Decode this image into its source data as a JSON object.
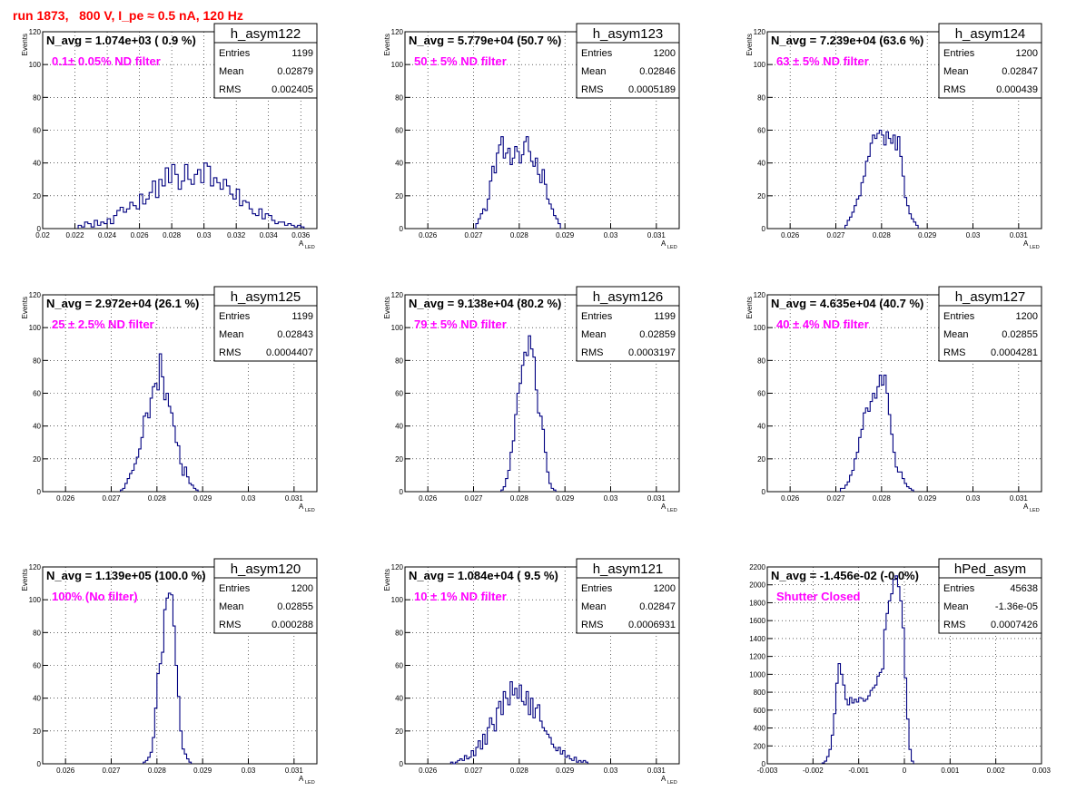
{
  "canvas_title": "run 1873,   800 V, I_pe ≈ 0.5 nA, 120 Hz",
  "colors": {
    "line": "#000080",
    "annotation": "#ff00ff",
    "title": "#ff0000",
    "grid": "#000000"
  },
  "stat_labels": {
    "entries": "Entries",
    "mean": "Mean",
    "rms": "RMS"
  },
  "chart_data": [
    {
      "type": "histogram",
      "name": "h_asym122",
      "nav": "N_avg = 1.074e+03 ( 0.9 %)",
      "filter": "0.1± 0.05% ND filter",
      "entries": "1199",
      "mean": "0.02879",
      "rms": "0.002405",
      "ylabel": "Events",
      "xlabel": "A",
      "xlabel_sub": "LED",
      "xlim": [
        0.02,
        0.037
      ],
      "ylim": [
        0,
        120
      ],
      "xticks": [
        0.02,
        0.022,
        0.024,
        0.026,
        0.028,
        0.03,
        0.032,
        0.034,
        0.036
      ],
      "xtick_labels": [
        "0.02",
        "0.022",
        "0.024",
        "0.026",
        "0.028",
        "0.03",
        "0.032",
        "0.034",
        "0.036"
      ],
      "yticks": [
        0,
        20,
        40,
        60,
        80,
        100,
        120
      ],
      "ytick_labels": [
        "0",
        "20",
        "40",
        "60",
        "80",
        "100",
        "120"
      ],
      "bins": {
        "x0": 0.0222,
        "width": 0.0002,
        "values": [
          2,
          1,
          4,
          3,
          1,
          5,
          2,
          4,
          3,
          6,
          3,
          8,
          11,
          13,
          10,
          12,
          16,
          14,
          12,
          21,
          15,
          18,
          22,
          29,
          19,
          30,
          26,
          37,
          28,
          39,
          33,
          24,
          29,
          39,
          30,
          27,
          33,
          36,
          28,
          40,
          38,
          26,
          31,
          28,
          24,
          30,
          26,
          21,
          18,
          24,
          14,
          17,
          16,
          12,
          9,
          8,
          12,
          6,
          9,
          8,
          5,
          3,
          4,
          4,
          2,
          3,
          2,
          1,
          2,
          1
        ]
      }
    },
    {
      "type": "histogram",
      "name": "h_asym123",
      "nav": "N_avg = 5.779e+04 (50.7 %)",
      "filter": "50 ± 5% ND filter",
      "entries": "1200",
      "mean": "0.02846",
      "rms": "0.0005189",
      "ylabel": "Events",
      "xlabel": "A",
      "xlabel_sub": "LED",
      "xlim": [
        0.0255,
        0.0315
      ],
      "ylim": [
        0,
        120
      ],
      "xticks": [
        0.026,
        0.027,
        0.028,
        0.029,
        0.03,
        0.031
      ],
      "xtick_labels": [
        "0.026",
        "0.027",
        "0.028",
        "0.029",
        "0.03",
        "0.031"
      ],
      "yticks": [
        0,
        20,
        40,
        60,
        80,
        100,
        120
      ],
      "ytick_labels": [
        "0",
        "20",
        "40",
        "60",
        "80",
        "100",
        "120"
      ],
      "bins": {
        "x0": 0.02705,
        "width": 5e-05,
        "values": [
          3,
          6,
          9,
          12,
          11,
          18,
          29,
          38,
          34,
          46,
          51,
          56,
          43,
          46,
          49,
          39,
          43,
          50,
          47,
          40,
          45,
          53,
          56,
          47,
          41,
          38,
          43,
          33,
          28,
          36,
          27,
          18,
          15,
          12,
          8,
          6,
          3
        ]
      }
    },
    {
      "type": "histogram",
      "name": "h_asym124",
      "nav": "N_avg = 7.239e+04 (63.6 %)",
      "filter": "63 ± 5% ND filter",
      "entries": "1200",
      "mean": "0.02847",
      "rms": "0.000439",
      "ylabel": "Events",
      "xlabel": "A",
      "xlabel_sub": "LED",
      "xlim": [
        0.0255,
        0.0315
      ],
      "ylim": [
        0,
        120
      ],
      "xticks": [
        0.026,
        0.027,
        0.028,
        0.029,
        0.03,
        0.031
      ],
      "xtick_labels": [
        "0.026",
        "0.027",
        "0.028",
        "0.029",
        "0.03",
        "0.031"
      ],
      "yticks": [
        0,
        20,
        40,
        60,
        80,
        100,
        120
      ],
      "ytick_labels": [
        "0",
        "20",
        "40",
        "60",
        "80",
        "100",
        "120"
      ],
      "bins": {
        "x0": 0.0272,
        "width": 5e-05,
        "values": [
          2,
          5,
          7,
          10,
          14,
          18,
          20,
          28,
          32,
          41,
          44,
          52,
          57,
          55,
          58,
          60,
          57,
          51,
          59,
          55,
          52,
          57,
          48,
          56,
          44,
          32,
          19,
          14,
          9,
          6,
          4,
          2
        ]
      }
    },
    {
      "type": "histogram",
      "name": "h_asym125",
      "nav": "N_avg = 2.972e+04 (26.1 %)",
      "filter": "25 ± 2.5% ND filter",
      "entries": "1199",
      "mean": "0.02843",
      "rms": "0.0004407",
      "ylabel": "Events",
      "xlabel": "A",
      "xlabel_sub": "LED",
      "xlim": [
        0.0255,
        0.0315
      ],
      "ylim": [
        0,
        120
      ],
      "xticks": [
        0.026,
        0.027,
        0.028,
        0.029,
        0.03,
        0.031
      ],
      "xtick_labels": [
        "0.026",
        "0.027",
        "0.028",
        "0.029",
        "0.03",
        "0.031"
      ],
      "yticks": [
        0,
        20,
        40,
        60,
        80,
        100,
        120
      ],
      "ytick_labels": [
        "0",
        "20",
        "40",
        "60",
        "80",
        "100",
        "120"
      ],
      "bins": {
        "x0": 0.0272,
        "width": 5e-05,
        "values": [
          1,
          2,
          5,
          8,
          11,
          13,
          17,
          21,
          26,
          33,
          46,
          48,
          45,
          57,
          64,
          66,
          62,
          84,
          70,
          56,
          60,
          52,
          48,
          40,
          30,
          28,
          17,
          10,
          15,
          9,
          5,
          4,
          2,
          1
        ]
      }
    },
    {
      "type": "histogram",
      "name": "h_asym126",
      "nav": "N_avg = 9.138e+04 (80.2 %)",
      "filter": "79 ± 5% ND filter",
      "entries": "1199",
      "mean": "0.02859",
      "rms": "0.0003197",
      "ylabel": "Events",
      "xlabel": "A",
      "xlabel_sub": "LED",
      "xlim": [
        0.0255,
        0.0315
      ],
      "ylim": [
        0,
        120
      ],
      "xticks": [
        0.026,
        0.027,
        0.028,
        0.029,
        0.03,
        0.031
      ],
      "xtick_labels": [
        "0.026",
        "0.027",
        "0.028",
        "0.029",
        "0.03",
        "0.031"
      ],
      "yticks": [
        0,
        20,
        40,
        60,
        80,
        100,
        120
      ],
      "ytick_labels": [
        "0",
        "20",
        "40",
        "60",
        "80",
        "100",
        "120"
      ],
      "bins": {
        "x0": 0.0276,
        "width": 5e-05,
        "values": [
          1,
          3,
          8,
          13,
          24,
          31,
          47,
          60,
          66,
          77,
          85,
          83,
          95,
          87,
          82,
          62,
          48,
          46,
          38,
          24,
          12,
          5,
          2,
          1
        ]
      }
    },
    {
      "type": "histogram",
      "name": "h_asym127",
      "nav": "N_avg = 4.635e+04 (40.7 %)",
      "filter": "40 ± 4% ND filter",
      "entries": "1200",
      "mean": "0.02855",
      "rms": "0.0004281",
      "ylabel": "Events",
      "xlabel": "A",
      "xlabel_sub": "LED",
      "xlim": [
        0.0255,
        0.0315
      ],
      "ylim": [
        0,
        120
      ],
      "xticks": [
        0.026,
        0.027,
        0.028,
        0.029,
        0.03,
        0.031
      ],
      "xtick_labels": [
        "0.026",
        "0.027",
        "0.028",
        "0.029",
        "0.03",
        "0.031"
      ],
      "yticks": [
        0,
        20,
        40,
        60,
        80,
        100,
        120
      ],
      "ytick_labels": [
        "0",
        "20",
        "40",
        "60",
        "80",
        "100",
        "120"
      ],
      "bins": {
        "x0": 0.0271,
        "width": 5e-05,
        "values": [
          2,
          2,
          4,
          6,
          10,
          13,
          20,
          24,
          33,
          38,
          48,
          51,
          49,
          55,
          60,
          57,
          64,
          71,
          65,
          71,
          60,
          47,
          35,
          24,
          15,
          12,
          12,
          8,
          5,
          3,
          2,
          1
        ]
      }
    },
    {
      "type": "histogram",
      "name": "h_asym120",
      "nav": "N_avg = 1.139e+05 (100.0 %)",
      "filter": "100% (No filter)",
      "entries": "1200",
      "mean": "0.02855",
      "rms": "0.000288",
      "ylabel": "Events",
      "xlabel": "A",
      "xlabel_sub": "LED",
      "xlim": [
        0.0255,
        0.0315
      ],
      "ylim": [
        0,
        120
      ],
      "xticks": [
        0.026,
        0.027,
        0.028,
        0.029,
        0.03,
        0.031
      ],
      "xtick_labels": [
        "0.026",
        "0.027",
        "0.028",
        "0.029",
        "0.03",
        "0.031"
      ],
      "yticks": [
        0,
        20,
        40,
        60,
        80,
        100,
        120
      ],
      "ytick_labels": [
        "0",
        "20",
        "40",
        "60",
        "80",
        "100",
        "120"
      ],
      "bins": {
        "x0": 0.0277,
        "width": 5e-05,
        "values": [
          1,
          2,
          4,
          7,
          16,
          34,
          55,
          61,
          68,
          94,
          101,
          104,
          103,
          84,
          60,
          41,
          20,
          9,
          6,
          3,
          1
        ]
      }
    },
    {
      "type": "histogram",
      "name": "h_asym121",
      "nav": "N_avg = 1.084e+04 ( 9.5 %)",
      "filter": "10 ± 1% ND filter",
      "entries": "1200",
      "mean": "0.02847",
      "rms": "0.0006931",
      "ylabel": "Events",
      "xlabel": "A",
      "xlabel_sub": "LED",
      "xlim": [
        0.0255,
        0.0315
      ],
      "ylim": [
        0,
        120
      ],
      "xticks": [
        0.026,
        0.027,
        0.028,
        0.029,
        0.03,
        0.031
      ],
      "xtick_labels": [
        "0.026",
        "0.027",
        "0.028",
        "0.029",
        "0.03",
        "0.031"
      ],
      "yticks": [
        0,
        20,
        40,
        60,
        80,
        100,
        120
      ],
      "ytick_labels": [
        "0",
        "20",
        "40",
        "60",
        "80",
        "100",
        "120"
      ],
      "bins": {
        "x0": 0.0265,
        "width": 5e-05,
        "values": [
          1,
          0,
          1,
          2,
          3,
          2,
          5,
          3,
          4,
          8,
          5,
          10,
          14,
          9,
          18,
          12,
          22,
          28,
          24,
          20,
          34,
          38,
          30,
          44,
          40,
          36,
          50,
          42,
          46,
          40,
          48,
          38,
          36,
          44,
          30,
          40,
          28,
          34,
          36,
          26,
          22,
          20,
          18,
          16,
          12,
          10,
          8,
          10,
          6,
          8,
          4,
          5,
          3,
          2,
          4,
          1,
          2,
          1,
          2,
          1
        ]
      }
    },
    {
      "type": "histogram",
      "name": "hPed_asym",
      "nav": "N_avg = -1.456e-02 (-0.0%)",
      "filter": "Shutter Closed",
      "entries": "45638",
      "mean": "-1.36e-05",
      "rms": "0.0007426",
      "ylabel": "",
      "xlabel": "",
      "xlabel_sub": "",
      "xlim": [
        -0.003,
        0.003
      ],
      "ylim": [
        0,
        2200
      ],
      "xticks": [
        -0.003,
        -0.002,
        -0.001,
        0,
        0.001,
        0.002,
        0.003
      ],
      "xtick_labels": [
        "-0.003",
        "-0.002",
        "-0.001",
        "0",
        "0.001",
        "0.002",
        "0.003"
      ],
      "yticks": [
        0,
        200,
        400,
        600,
        800,
        1000,
        1200,
        1400,
        1600,
        1800,
        2000,
        2200
      ],
      "ytick_labels": [
        "0",
        "200",
        "400",
        "600",
        "800",
        "1000",
        "1200",
        "1400",
        "1600",
        "1800",
        "2000",
        "2200"
      ],
      "bins": {
        "x0": -0.0018,
        "width": 5e-05,
        "values": [
          10,
          30,
          80,
          160,
          320,
          560,
          900,
          1120,
          1000,
          880,
          720,
          660,
          740,
          680,
          720,
          690,
          740,
          730,
          700,
          720,
          760,
          820,
          850,
          880,
          980,
          1020,
          1060,
          1500,
          1680,
          1820,
          1900,
          2060,
          2100,
          1980,
          1820,
          1520,
          960,
          500,
          160,
          30
        ]
      }
    }
  ]
}
